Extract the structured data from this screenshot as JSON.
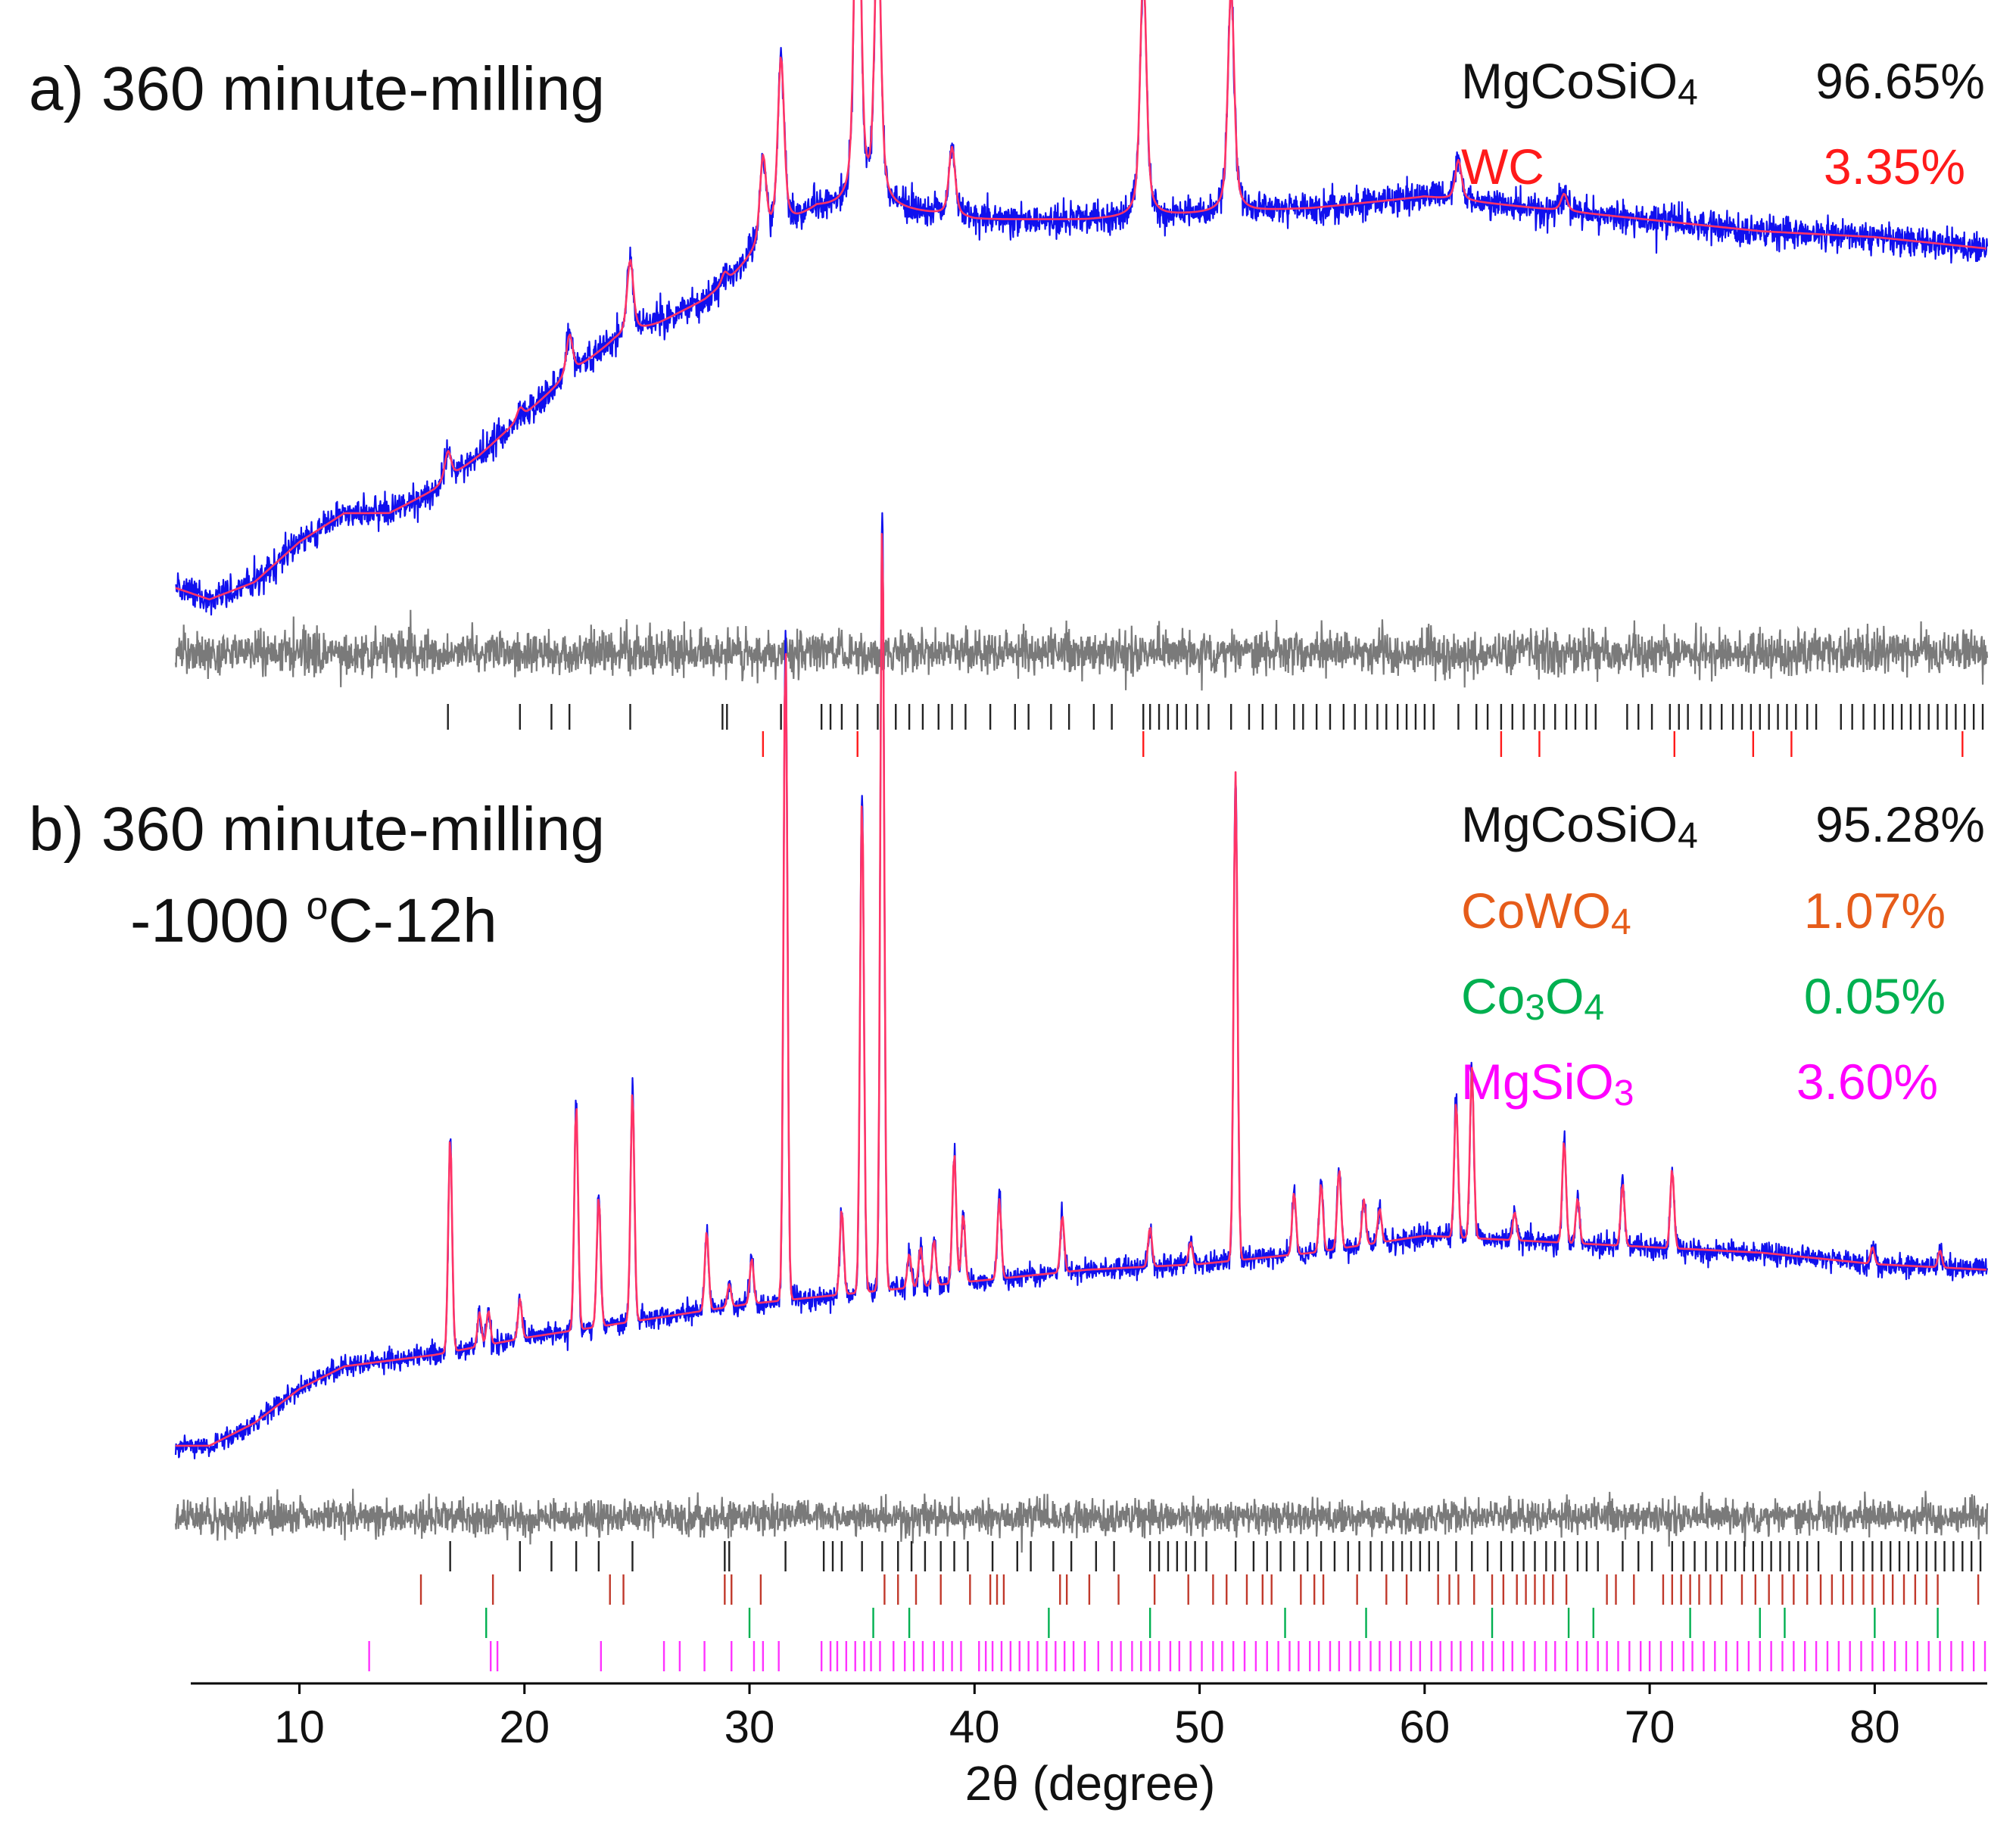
{
  "chart_data": [
    {
      "type": "line",
      "panel": "a",
      "title": "a) 360 minute-milling",
      "xlabel": "2θ (degree)",
      "xlim": [
        4.5,
        85
      ],
      "x_ticks": [
        10,
        20,
        30,
        40,
        50,
        60,
        70,
        80
      ],
      "y_axis_shown": false,
      "series": [
        {
          "name": "observed",
          "color": "#1010ee",
          "style": "noisy line"
        },
        {
          "name": "calculated",
          "color": "#ff3366",
          "style": "line"
        },
        {
          "name": "difference",
          "color": "#7a7a7a",
          "style": "line"
        }
      ],
      "background": {
        "x": [
          4.5,
          6,
          8,
          10,
          12,
          14,
          16,
          18,
          20,
          22,
          24,
          26,
          28,
          29,
          31,
          33,
          36,
          40,
          45,
          50,
          55,
          60,
          65,
          70,
          75,
          80,
          85
        ],
        "y": [
          0.07,
          0.05,
          0.08,
          0.15,
          0.2,
          0.2,
          0.24,
          0.3,
          0.37,
          0.44,
          0.5,
          0.53,
          0.57,
          0.6,
          0.68,
          0.73,
          0.73,
          0.71,
          0.71,
          0.72,
          0.73,
          0.75,
          0.73,
          0.71,
          0.69,
          0.68,
          0.66
        ]
      },
      "peaks": [
        {
          "x": 16.6,
          "h": 0.05
        },
        {
          "x": 19.8,
          "h": 0.02
        },
        {
          "x": 22.0,
          "h": 0.07
        },
        {
          "x": 24.7,
          "h": 0.13
        },
        {
          "x": 28.9,
          "h": 0.02
        },
        {
          "x": 30.6,
          "h": 0.15
        },
        {
          "x": 31.4,
          "h": 0.3
        },
        {
          "x": 34.8,
          "h": 0.7
        },
        {
          "x": 35.7,
          "h": 0.49
        },
        {
          "x": 39.0,
          "h": 0.12
        },
        {
          "x": 47.5,
          "h": 0.43
        },
        {
          "x": 51.4,
          "h": 0.39
        },
        {
          "x": 61.5,
          "h": 0.07
        },
        {
          "x": 66.2,
          "h": 0.03
        }
      ],
      "legend": [
        {
          "phase": "MgCoSiO",
          "subscript": "4",
          "percent": "96.65%",
          "color": "#111111"
        },
        {
          "phase": "WC",
          "subscript": "",
          "percent": "3.35%",
          "color": "#ff1a1a"
        }
      ],
      "phase_markers": [
        {
          "phase": "MgCoSiO4",
          "color": "#222222",
          "positions": [
            16.6,
            19.8,
            21.2,
            22.0,
            24.7,
            28.8,
            29.0,
            31.4,
            33.2,
            33.6,
            34.1,
            34.8,
            35.7,
            36.5,
            37.1,
            37.7,
            38.4,
            39.0,
            39.6,
            40.7,
            41.8,
            42.4,
            43.4,
            44.2,
            45.3,
            46.1,
            47.5,
            47.8,
            48.2,
            48.6,
            49.0,
            49.4,
            49.9,
            50.4,
            51.4,
            52.2,
            52.8,
            53.4,
            54.2,
            54.6,
            55.2,
            55.8,
            56.4,
            56.9,
            57.4,
            57.9,
            58.3,
            58.8,
            59.2,
            59.6,
            60.0,
            60.4,
            61.5,
            62.3,
            62.8,
            63.4,
            63.9,
            64.4,
            64.9,
            65.3,
            65.8,
            66.3,
            66.7,
            67.2,
            67.6,
            69.0,
            69.5,
            70.1,
            70.9,
            71.3,
            71.7,
            72.3,
            72.7,
            73.2,
            73.7,
            74.1,
            74.5,
            74.9,
            75.3,
            75.7,
            76.1,
            76.5,
            77.0,
            77.4,
            78.5,
            79.0,
            79.5,
            80.0,
            80.4,
            80.8,
            81.2,
            81.6,
            82.0,
            82.4,
            82.8,
            83.2,
            83.6,
            84.0,
            84.4,
            84.8
          ]
        },
        {
          "phase": "WC",
          "color": "#ff1a1a",
          "positions": [
            30.6,
            34.8,
            47.5,
            63.4,
            65.1,
            71.1,
            74.6,
            76.3,
            83.9
          ]
        }
      ]
    },
    {
      "type": "line",
      "panel": "b",
      "title_line1": "b) 360 minute-milling",
      "title_line2_pre": "-1000 ",
      "title_line2_sup": "o",
      "title_line2_post": "C-12h",
      "xlabel": "2θ (degree)",
      "xlim": [
        4.5,
        85
      ],
      "x_ticks": [
        10,
        20,
        30,
        40,
        50,
        60,
        70,
        80
      ],
      "y_axis_shown": false,
      "series": [
        {
          "name": "observed",
          "color": "#1010ee",
          "style": "noisy line"
        },
        {
          "name": "calculated",
          "color": "#ff3366",
          "style": "line"
        },
        {
          "name": "difference",
          "color": "#7a7a7a",
          "style": "line"
        }
      ],
      "background": {
        "x": [
          4.5,
          6,
          8,
          10,
          12,
          14,
          16,
          20,
          25,
          30,
          35,
          40,
          45,
          50,
          55,
          60,
          65,
          70,
          75,
          80,
          85
        ],
        "y": [
          0.06,
          0.06,
          0.1,
          0.16,
          0.2,
          0.21,
          0.22,
          0.25,
          0.28,
          0.31,
          0.33,
          0.35,
          0.37,
          0.38,
          0.4,
          0.43,
          0.42,
          0.41,
          0.4,
          0.38,
          0.37
        ]
      },
      "peaks": [
        {
          "x": 16.7,
          "h": 0.38
        },
        {
          "x": 18.0,
          "h": 0.06
        },
        {
          "x": 18.4,
          "h": 0.06
        },
        {
          "x": 19.8,
          "h": 0.07
        },
        {
          "x": 22.3,
          "h": 0.4
        },
        {
          "x": 23.3,
          "h": 0.23
        },
        {
          "x": 24.8,
          "h": 0.41
        },
        {
          "x": 28.1,
          "h": 0.14
        },
        {
          "x": 29.1,
          "h": 0.04
        },
        {
          "x": 30.1,
          "h": 0.08
        },
        {
          "x": 31.6,
          "h": 1.17
        },
        {
          "x": 34.1,
          "h": 0.15
        },
        {
          "x": 35.0,
          "h": 0.88
        },
        {
          "x": 35.9,
          "h": 1.37
        },
        {
          "x": 37.1,
          "h": 0.06
        },
        {
          "x": 37.6,
          "h": 0.07
        },
        {
          "x": 38.2,
          "h": 0.08
        },
        {
          "x": 39.1,
          "h": 0.23
        },
        {
          "x": 39.5,
          "h": 0.12
        },
        {
          "x": 41.1,
          "h": 0.14
        },
        {
          "x": 43.9,
          "h": 0.1
        },
        {
          "x": 47.8,
          "h": 0.07
        },
        {
          "x": 49.6,
          "h": 0.04
        },
        {
          "x": 51.6,
          "h": 0.86
        },
        {
          "x": 54.2,
          "h": 0.11
        },
        {
          "x": 55.4,
          "h": 0.12
        },
        {
          "x": 56.2,
          "h": 0.14
        },
        {
          "x": 57.3,
          "h": 0.08
        },
        {
          "x": 58.0,
          "h": 0.06
        },
        {
          "x": 61.4,
          "h": 0.24
        },
        {
          "x": 62.1,
          "h": 0.3
        },
        {
          "x": 64.0,
          "h": 0.05
        },
        {
          "x": 66.2,
          "h": 0.18
        },
        {
          "x": 66.8,
          "h": 0.08
        },
        {
          "x": 68.8,
          "h": 0.11
        },
        {
          "x": 71.0,
          "h": 0.14
        },
        {
          "x": 79.9,
          "h": 0.03
        },
        {
          "x": 82.9,
          "h": 0.03
        }
      ],
      "legend": [
        {
          "phase": "MgCoSiO",
          "subscript": "4",
          "percent": "95.28%",
          "color": "#111111"
        },
        {
          "phase": "CoWO",
          "subscript": "4",
          "percent": "1.07%",
          "color": "#e65c1a"
        },
        {
          "phase": "Co",
          "subscript": "3",
          "phase_tail": "O",
          "subscript_tail": "4",
          "percent": "0.05%",
          "color": "#00b050"
        },
        {
          "phase": "MgSiO",
          "subscript": "3",
          "percent": "3.60%",
          "color": "#ff00ff"
        }
      ],
      "phase_markers": [
        {
          "phase": "MgCoSiO4",
          "color": "#222222",
          "positions": [
            16.7,
            19.8,
            21.2,
            22.3,
            23.3,
            24.8,
            28.9,
            29.1,
            31.6,
            33.3,
            33.7,
            34.1,
            35.0,
            35.9,
            36.6,
            37.2,
            37.8,
            38.5,
            39.1,
            39.7,
            40.8,
            41.9,
            42.5,
            43.5,
            44.3,
            45.4,
            46.2,
            47.8,
            48.2,
            48.6,
            49.0,
            49.4,
            49.8,
            50.3,
            51.6,
            52.4,
            53.0,
            53.6,
            54.2,
            54.8,
            55.4,
            56.0,
            56.6,
            57.1,
            57.6,
            58.1,
            58.6,
            59.0,
            59.4,
            59.8,
            60.2,
            60.6,
            61.4,
            62.1,
            62.8,
            63.4,
            63.9,
            64.4,
            64.9,
            65.4,
            65.8,
            66.2,
            66.8,
            67.2,
            67.7,
            68.8,
            69.5,
            70.1,
            71.0,
            71.5,
            72.0,
            72.5,
            73.0,
            73.4,
            73.8,
            74.2,
            74.6,
            75.0,
            75.4,
            75.8,
            76.2,
            76.6,
            77.0,
            77.5,
            78.5,
            79.0,
            79.5,
            79.9,
            80.3,
            80.7,
            81.1,
            81.5,
            81.9,
            82.3,
            82.7,
            83.1,
            83.5,
            83.9,
            84.3,
            84.7
          ]
        },
        {
          "phase": "CoWO4",
          "color": "#c0392b",
          "positions": [
            15.4,
            18.6,
            23.8,
            24.4,
            28.9,
            29.2,
            30.5,
            36.0,
            36.6,
            37.4,
            38.5,
            39.8,
            40.7,
            41.0,
            41.3,
            43.8,
            44.1,
            45.1,
            46.4,
            48.0,
            49.5,
            50.6,
            51.2,
            52.1,
            52.8,
            53.2,
            54.5,
            55.1,
            55.5,
            57.0,
            58.3,
            59.2,
            60.6,
            61.1,
            61.5,
            62.2,
            63.0,
            63.5,
            64.1,
            64.5,
            64.9,
            65.3,
            65.7,
            66.3,
            68.1,
            68.5,
            69.3,
            70.6,
            71.0,
            71.4,
            71.8,
            72.2,
            72.7,
            73.2,
            74.1,
            74.7,
            75.3,
            75.9,
            76.4,
            77.0,
            77.6,
            78.1,
            78.6,
            79.0,
            79.5,
            79.9,
            80.4,
            80.8,
            81.3,
            81.8,
            82.3,
            82.8,
            84.6
          ]
        },
        {
          "phase": "Co3O4",
          "color": "#00b050",
          "positions": [
            18.3,
            30.0,
            35.5,
            37.1,
            43.3,
            47.8,
            53.8,
            57.4,
            63.0,
            66.4,
            67.5,
            71.8,
            74.9,
            76.0,
            80.0,
            82.8
          ]
        },
        {
          "phase": "MgSiO3",
          "color": "#ff33ff",
          "positions": [
            13.1,
            18.5,
            18.8,
            23.4,
            26.2,
            26.9,
            28.0,
            29.2,
            30.2,
            30.6,
            31.3,
            33.2,
            33.6,
            33.9,
            34.3,
            34.7,
            35.1,
            35.4,
            35.8,
            36.4,
            36.9,
            37.3,
            37.7,
            38.2,
            38.6,
            39.0,
            39.4,
            40.2,
            40.5,
            40.8,
            41.2,
            41.6,
            42.0,
            42.4,
            42.8,
            43.2,
            43.6,
            44.0,
            44.4,
            44.9,
            45.5,
            46.1,
            46.5,
            47.0,
            47.4,
            47.8,
            48.2,
            48.7,
            49.1,
            49.6,
            50.1,
            50.6,
            51.0,
            51.5,
            52.0,
            52.5,
            53.0,
            53.5,
            54.0,
            54.4,
            54.9,
            55.3,
            55.8,
            56.2,
            56.7,
            57.1,
            57.6,
            58.0,
            58.5,
            58.9,
            59.4,
            59.8,
            60.3,
            60.7,
            61.2,
            61.6,
            62.1,
            62.6,
            63.0,
            63.5,
            63.9,
            64.4,
            64.9,
            65.4,
            65.8,
            66.3,
            66.8,
            67.2,
            67.7,
            68.1,
            68.6,
            69.1,
            69.6,
            70.0,
            70.5,
            71.0,
            71.5,
            71.9,
            72.4,
            72.9,
            73.4,
            73.9,
            74.4,
            74.9,
            75.4,
            75.9,
            76.4,
            76.9,
            77.4,
            77.9,
            78.4,
            78.9,
            79.4,
            79.9,
            80.4,
            80.9,
            81.4,
            81.9,
            82.4,
            82.9,
            83.4,
            83.9,
            84.4,
            84.9
          ]
        }
      ]
    }
  ]
}
